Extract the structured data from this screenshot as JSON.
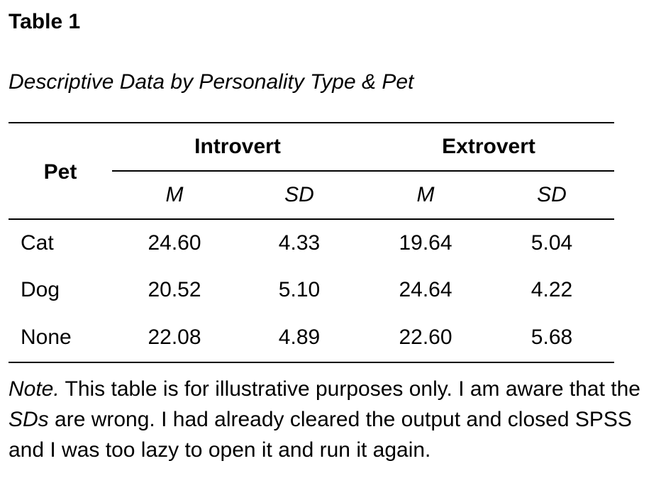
{
  "table_label": "Table 1",
  "table_title": "Descriptive Data by Personality Type & Pet",
  "header": {
    "row_header": "Pet",
    "groups": [
      "Introvert",
      "Extrovert"
    ],
    "subheaders": [
      "M",
      "SD",
      "M",
      "SD"
    ]
  },
  "rows": [
    {
      "pet": "Cat",
      "values": [
        "24.60",
        "4.33",
        "19.64",
        "5.04"
      ]
    },
    {
      "pet": "Dog",
      "values": [
        "20.52",
        "5.10",
        "24.64",
        "4.22"
      ]
    },
    {
      "pet": "None",
      "values": [
        "22.08",
        "4.89",
        "22.60",
        "5.68"
      ]
    }
  ],
  "note": {
    "label": "Note.",
    "text_1": " This table is for illustrative purposes only. I am aware that the ",
    "emph": "SDs",
    "text_2": " are wrong. I had already cleared the output and closed SPSS and I was too lazy to open it and run it again."
  }
}
